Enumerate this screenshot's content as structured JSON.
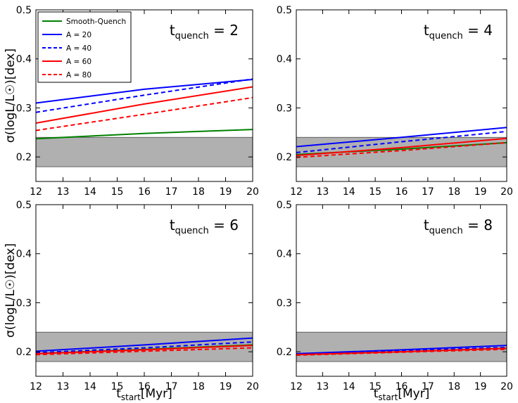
{
  "figure": {
    "ylabel": "σ(logL/L☉)[dex]",
    "xlabel_main": "t",
    "xlabel_sub": "start",
    "xlabel_unit": "[Myr]"
  },
  "legend": {
    "location": "top-left of top-left panel",
    "entries": [
      {
        "label": "Smooth-Quench",
        "color": "#008000",
        "dash": "solid"
      },
      {
        "label": "A = 20",
        "color": "#0000ff",
        "dash": "solid"
      },
      {
        "label": "A = 40",
        "color": "#0000ff",
        "dash": "dashed"
      },
      {
        "label": "A = 60",
        "color": "#ff0000",
        "dash": "solid"
      },
      {
        "label": "A = 80",
        "color": "#ff0000",
        "dash": "dashed"
      }
    ]
  },
  "chart_data": [
    {
      "type": "line",
      "title_main": "t",
      "title_sub": "quench",
      "title_rest": " = 2",
      "xlim": [
        12,
        20
      ],
      "ylim": [
        0.15,
        0.5
      ],
      "xticks": [
        12,
        13,
        14,
        15,
        16,
        17,
        18,
        19,
        20
      ],
      "yticks": [
        0.2,
        0.3,
        0.4,
        0.5
      ],
      "ytick_labels": [
        "0.2",
        "0.3",
        "0.4",
        "0.5"
      ],
      "band": [
        0.18,
        0.24
      ],
      "x": [
        12,
        16,
        20
      ],
      "series": [
        {
          "name": "Smooth-Quench",
          "color": "#008000",
          "dash": "solid",
          "values": [
            0.237,
            0.248,
            0.256
          ]
        },
        {
          "name": "A = 20",
          "color": "#0000ff",
          "dash": "solid",
          "values": [
            0.31,
            0.338,
            0.358
          ]
        },
        {
          "name": "A = 40",
          "color": "#0000ff",
          "dash": "dashed",
          "values": [
            0.291,
            0.326,
            0.359
          ]
        },
        {
          "name": "A = 60",
          "color": "#ff0000",
          "dash": "solid",
          "values": [
            0.269,
            0.308,
            0.343
          ]
        },
        {
          "name": "A = 80",
          "color": "#ff0000",
          "dash": "dashed",
          "values": [
            0.254,
            0.287,
            0.321
          ]
        }
      ]
    },
    {
      "type": "line",
      "title_main": "t",
      "title_sub": "quench",
      "title_rest": " = 4",
      "xlim": [
        12,
        20
      ],
      "ylim": [
        0.15,
        0.5
      ],
      "xticks": [
        12,
        13,
        14,
        15,
        16,
        17,
        18,
        19,
        20
      ],
      "yticks": [
        0.2,
        0.3,
        0.4,
        0.5
      ],
      "ytick_labels": [
        "0.2",
        "0.3",
        "0.4",
        "0.5"
      ],
      "band": [
        0.18,
        0.24
      ],
      "x": [
        12,
        16,
        20
      ],
      "series": [
        {
          "name": "Smooth-Quench",
          "color": "#008000",
          "dash": "solid",
          "values": [
            0.205,
            0.216,
            0.229
          ]
        },
        {
          "name": "A = 20",
          "color": "#0000ff",
          "dash": "solid",
          "values": [
            0.221,
            0.24,
            0.26
          ]
        },
        {
          "name": "A = 40",
          "color": "#0000ff",
          "dash": "dashed",
          "values": [
            0.209,
            0.231,
            0.252
          ]
        },
        {
          "name": "A = 60",
          "color": "#ff0000",
          "dash": "solid",
          "values": [
            0.203,
            0.219,
            0.238
          ]
        },
        {
          "name": "A = 80",
          "color": "#ff0000",
          "dash": "dashed",
          "values": [
            0.199,
            0.213,
            0.229
          ]
        }
      ]
    },
    {
      "type": "line",
      "title_main": "t",
      "title_sub": "quench",
      "title_rest": " = 6",
      "xlim": [
        12,
        20
      ],
      "ylim": [
        0.15,
        0.5
      ],
      "xticks": [
        12,
        13,
        14,
        15,
        16,
        17,
        18,
        19,
        20
      ],
      "yticks": [
        0.2,
        0.3,
        0.4,
        0.5
      ],
      "ytick_labels": [
        "0.2",
        "0.3",
        "0.4",
        "0.5"
      ],
      "band": [
        0.18,
        0.24
      ],
      "x": [
        12,
        16,
        20
      ],
      "series": [
        {
          "name": "Smooth-Quench",
          "color": "#008000",
          "dash": "solid",
          "values": [
            0.196,
            0.205,
            0.214
          ]
        },
        {
          "name": "A = 20",
          "color": "#0000ff",
          "dash": "solid",
          "values": [
            0.201,
            0.214,
            0.228
          ]
        },
        {
          "name": "A = 40",
          "color": "#0000ff",
          "dash": "dashed",
          "values": [
            0.198,
            0.208,
            0.22
          ]
        },
        {
          "name": "A = 60",
          "color": "#ff0000",
          "dash": "solid",
          "values": [
            0.196,
            0.204,
            0.213
          ]
        },
        {
          "name": "A = 80",
          "color": "#ff0000",
          "dash": "dashed",
          "values": [
            0.194,
            0.201,
            0.208
          ]
        }
      ]
    },
    {
      "type": "line",
      "title_main": "t",
      "title_sub": "quench",
      "title_rest": " = 8",
      "xlim": [
        12,
        20
      ],
      "ylim": [
        0.15,
        0.5
      ],
      "xticks": [
        12,
        13,
        14,
        15,
        16,
        17,
        18,
        19,
        20
      ],
      "yticks": [
        0.2,
        0.3,
        0.4,
        0.5
      ],
      "ytick_labels": [
        "0.2",
        "0.3",
        "0.4",
        "0.5"
      ],
      "band": [
        0.18,
        0.24
      ],
      "x": [
        12,
        16,
        20
      ],
      "series": [
        {
          "name": "Smooth-Quench",
          "color": "#008000",
          "dash": "solid",
          "values": [
            0.194,
            0.2,
            0.207
          ]
        },
        {
          "name": "A = 20",
          "color": "#0000ff",
          "dash": "solid",
          "values": [
            0.196,
            0.204,
            0.213
          ]
        },
        {
          "name": "A = 40",
          "color": "#0000ff",
          "dash": "dashed",
          "values": [
            0.195,
            0.202,
            0.209
          ]
        },
        {
          "name": "A = 60",
          "color": "#ff0000",
          "dash": "solid",
          "values": [
            0.194,
            0.2,
            0.207
          ]
        },
        {
          "name": "A = 80",
          "color": "#ff0000",
          "dash": "dashed",
          "values": [
            0.193,
            0.199,
            0.205
          ]
        }
      ]
    }
  ]
}
